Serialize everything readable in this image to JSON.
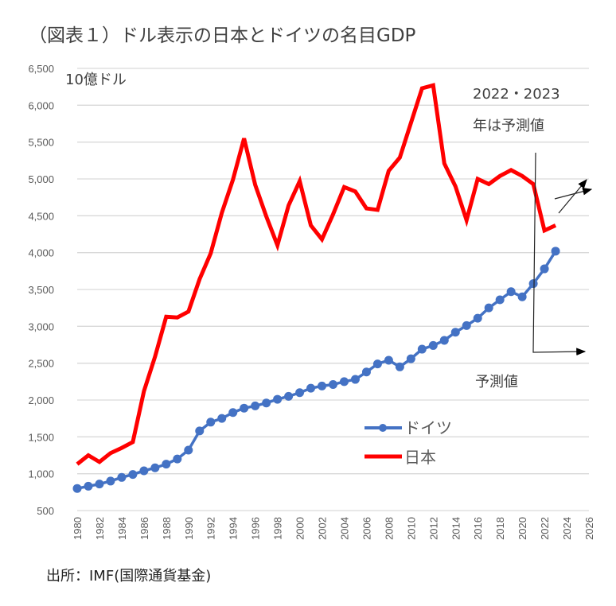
{
  "chart_data": {
    "type": "line",
    "title": "（図表１）ドル表示の日本とドイツの名目GDP",
    "ylabel": "10億ドル",
    "xlabel": "",
    "ylim": [
      500,
      6500
    ],
    "xlim": [
      1980,
      2026
    ],
    "yticks": [
      "500",
      "1,000",
      "1,500",
      "2,000",
      "2,500",
      "3,000",
      "3,500",
      "4,000",
      "4,500",
      "5,000",
      "5,500",
      "6,000",
      "6,500"
    ],
    "ytick_values": [
      500,
      1000,
      1500,
      2000,
      2500,
      3000,
      3500,
      4000,
      4500,
      5000,
      5500,
      6000,
      6500
    ],
    "xticks": [
      "1980",
      "1982",
      "1984",
      "1986",
      "1988",
      "1990",
      "1992",
      "1994",
      "1996",
      "1998",
      "2000",
      "2002",
      "2004",
      "2006",
      "2008",
      "2010",
      "2012",
      "2014",
      "2016",
      "2018",
      "2020",
      "2022",
      "2024",
      "2026"
    ],
    "grid": true,
    "legend_position": "bottom-center",
    "x": [
      1980,
      1981,
      1982,
      1983,
      1984,
      1985,
      1986,
      1987,
      1988,
      1989,
      1990,
      1991,
      1992,
      1993,
      1994,
      1995,
      1996,
      1997,
      1998,
      1999,
      2000,
      2001,
      2002,
      2003,
      2004,
      2005,
      2006,
      2007,
      2008,
      2009,
      2010,
      2011,
      2012,
      2013,
      2014,
      2015,
      2016,
      2017,
      2018,
      2019,
      2020,
      2021,
      2022,
      2023
    ],
    "series": [
      {
        "name": "ドイツ",
        "color": "#4472C4",
        "marker": "circle",
        "values": [
          800,
          830,
          860,
          900,
          950,
          990,
          1040,
          1080,
          1130,
          1200,
          1320,
          1580,
          1700,
          1750,
          1830,
          1890,
          1920,
          1960,
          2010,
          2050,
          2100,
          2160,
          2190,
          2210,
          2250,
          2280,
          2380,
          2490,
          2540,
          2450,
          2560,
          2690,
          2740,
          2810,
          2920,
          3010,
          3110,
          3250,
          3360,
          3470,
          3400,
          3580,
          3780,
          4020
        ]
      },
      {
        "name": "日本",
        "color": "#FF0000",
        "marker": "none",
        "values": [
          1130,
          1250,
          1160,
          1280,
          1350,
          1430,
          2120,
          2590,
          3130,
          3120,
          3200,
          3640,
          3990,
          4540,
          4990,
          5550,
          4920,
          4490,
          4100,
          4640,
          4970,
          4370,
          4180,
          4520,
          4890,
          4830,
          4600,
          4580,
          5110,
          5290,
          5760,
          6230,
          6270,
          5210,
          4900,
          4440,
          5000,
          4930,
          5040,
          5120,
          5040,
          4930,
          4300,
          4370
        ]
      }
    ],
    "annotations": {
      "forecast_note_line1": "2022・2023",
      "forecast_note_line2": "年は予測値",
      "forecast_label": "予測値"
    },
    "source": "出所：IMF(国際通貨基金)"
  }
}
